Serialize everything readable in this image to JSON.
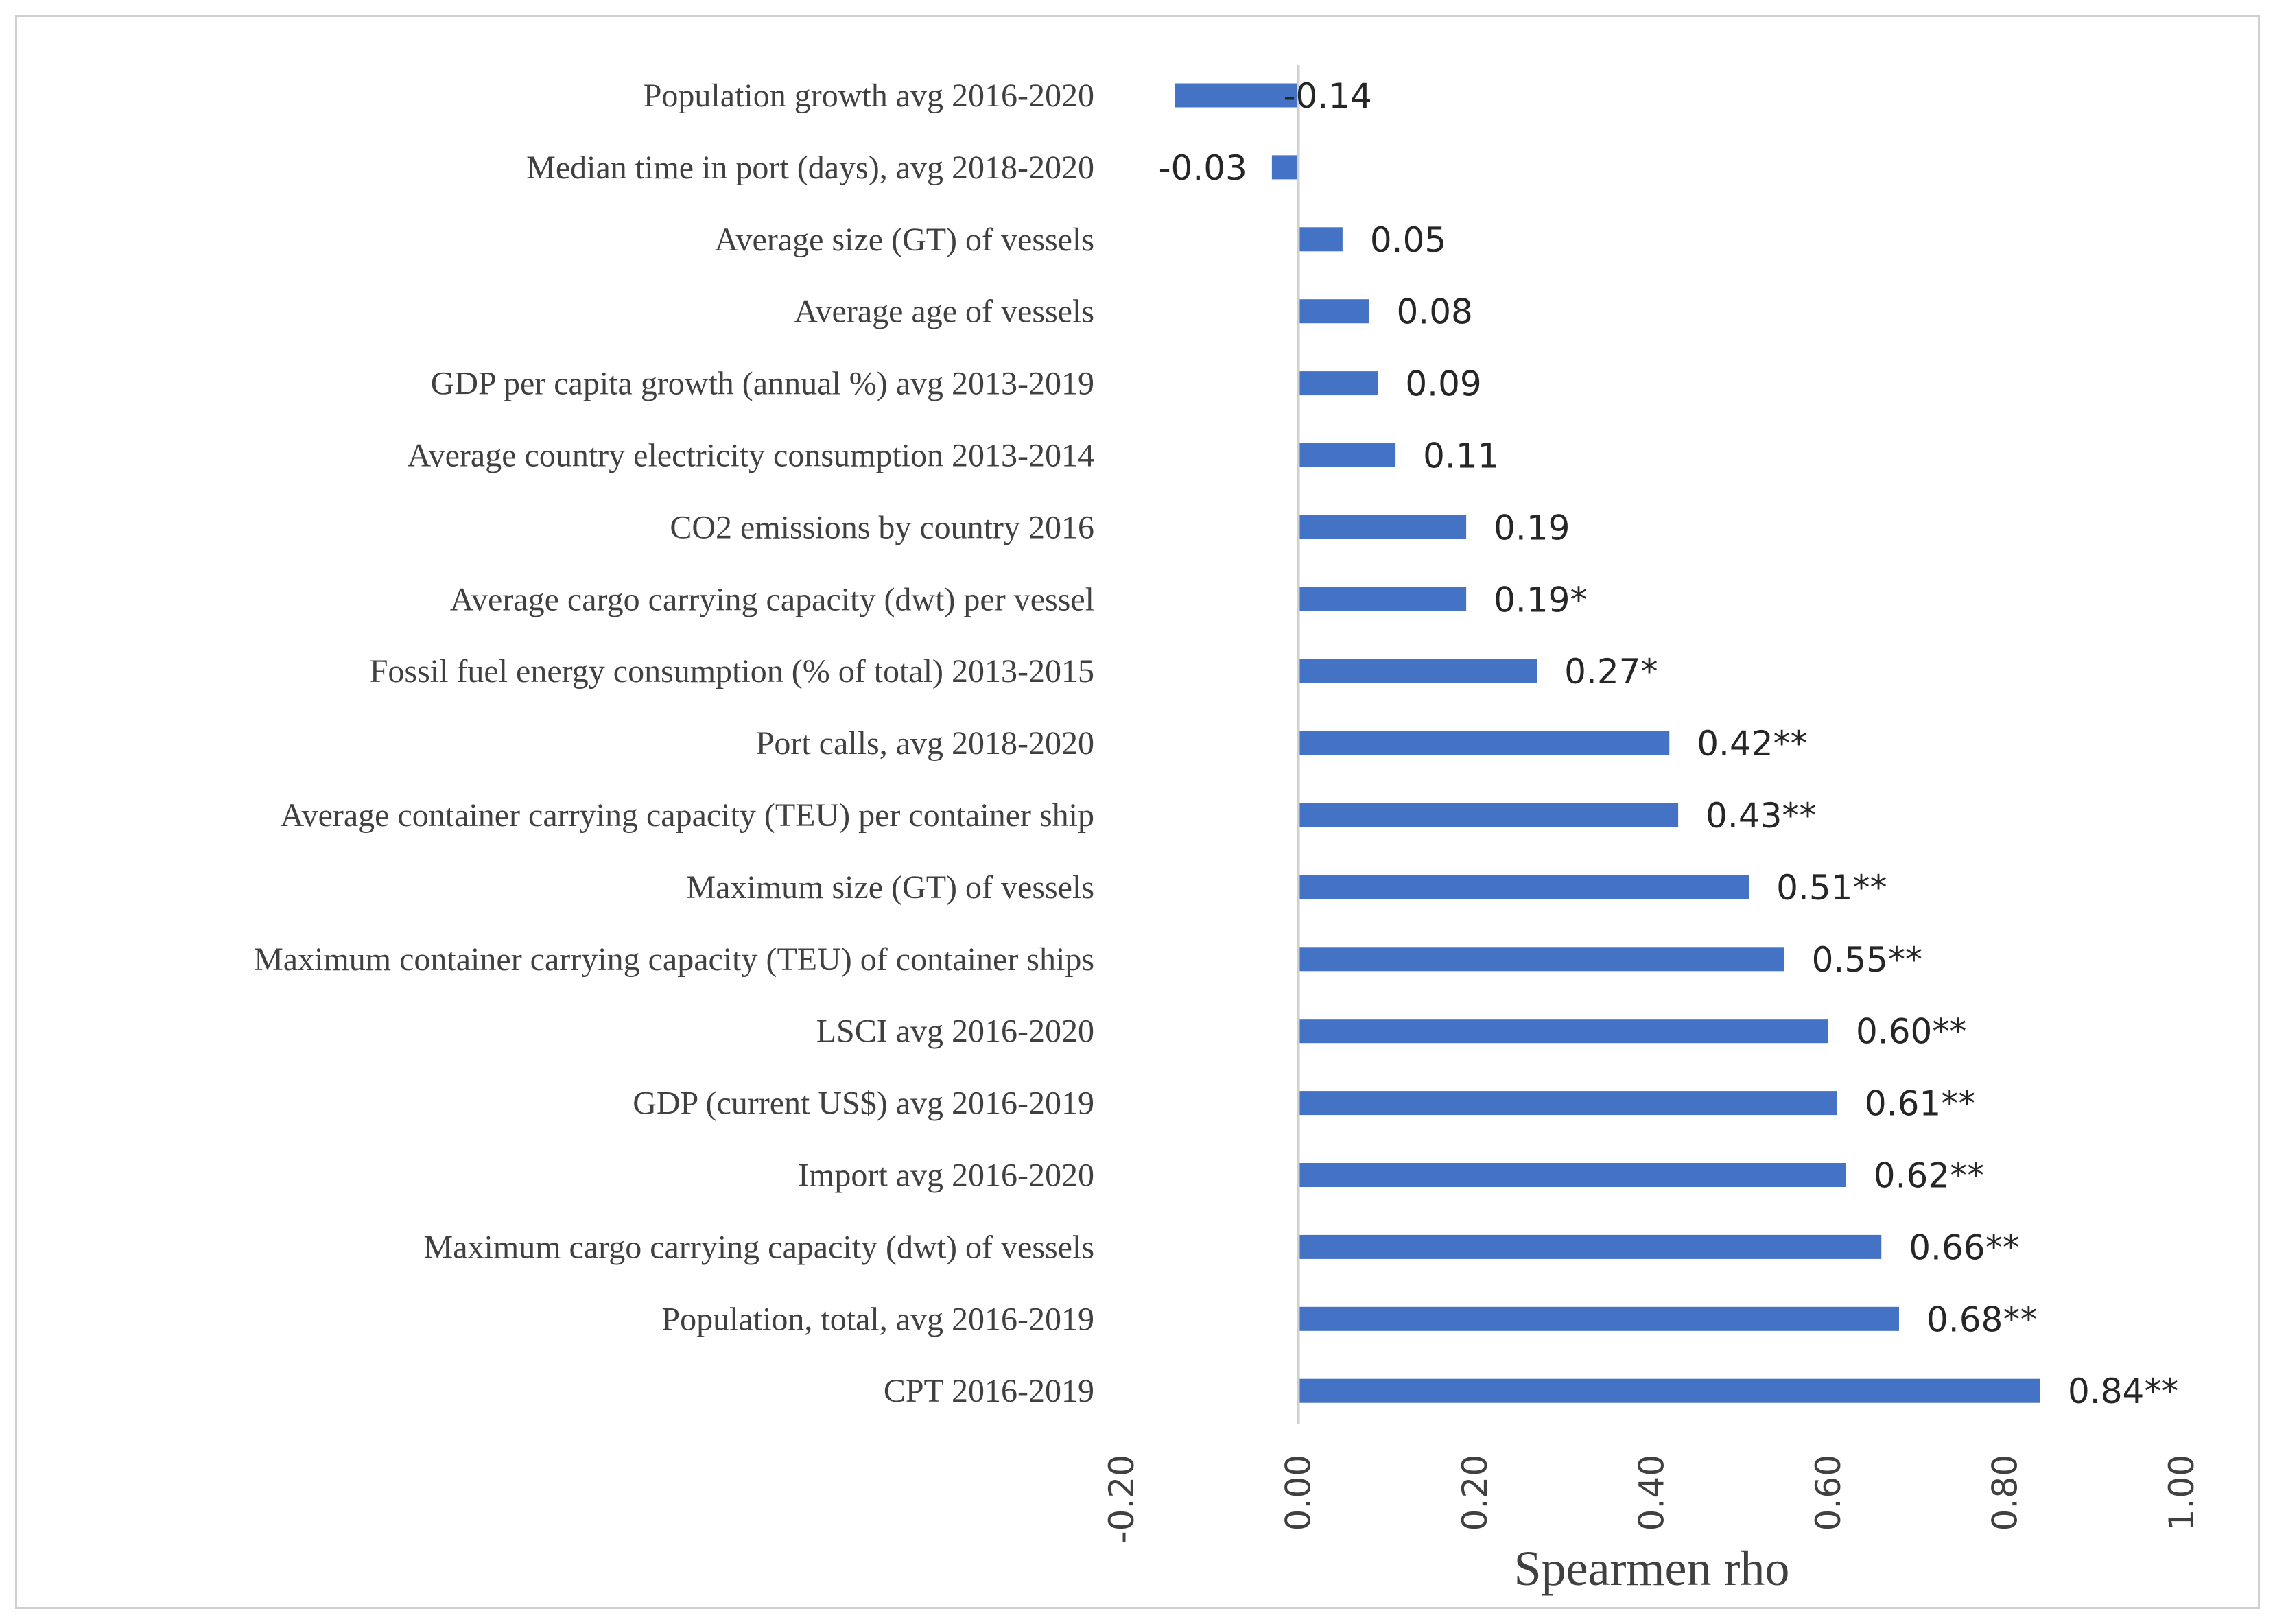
{
  "chart_data": {
    "type": "bar",
    "orientation": "horizontal",
    "title": "",
    "xlabel": "Spearmen rho",
    "ylabel": "",
    "xlim": [
      -0.2,
      1.0
    ],
    "xticks": [
      "-0.20",
      "0.00",
      "0.20",
      "0.40",
      "0.60",
      "0.80",
      "1.00"
    ],
    "xtick_values": [
      -0.2,
      0.0,
      0.2,
      0.4,
      0.6,
      0.8,
      1.0
    ],
    "grid": false,
    "bar_color": "#4472C4",
    "categories": [
      "Population growth avg 2016-2020",
      "Median time in port (days), avg 2018-2020",
      "Average size (GT) of vessels",
      "Average age of vessels",
      "GDP per capita growth (annual %) avg 2013-2019",
      "Average country electricity consumption 2013-2014",
      "CO2 emissions by country 2016",
      "Average cargo carrying capacity (dwt) per vessel",
      "Fossil fuel energy consumption (% of total) 2013-2015",
      "Port calls, avg 2018-2020",
      "Average container carrying capacity (TEU) per container ship",
      "Maximum size (GT) of vessels",
      "Maximum container carrying capacity (TEU) of container ships",
      "LSCI avg 2016-2020",
      "GDP (current US$) avg 2016-2019",
      "Import avg 2016-2020",
      "Maximum cargo carrying capacity (dwt) of vessels",
      "Population, total, avg 2016-2019",
      "CPT 2016-2019"
    ],
    "values": [
      -0.14,
      -0.03,
      0.05,
      0.08,
      0.09,
      0.11,
      0.19,
      0.19,
      0.27,
      0.42,
      0.43,
      0.51,
      0.55,
      0.6,
      0.61,
      0.62,
      0.66,
      0.68,
      0.84
    ],
    "data_labels": [
      "-0.14",
      "-0.03",
      "0.05",
      "0.08",
      "0.09",
      "0.11",
      "0.19",
      "0.19*",
      "0.27*",
      "0.42**",
      "0.43**",
      "0.51**",
      "0.55**",
      "0.60**",
      "0.61**",
      "0.62**",
      "0.66**",
      "0.68**",
      "0.84**"
    ]
  }
}
